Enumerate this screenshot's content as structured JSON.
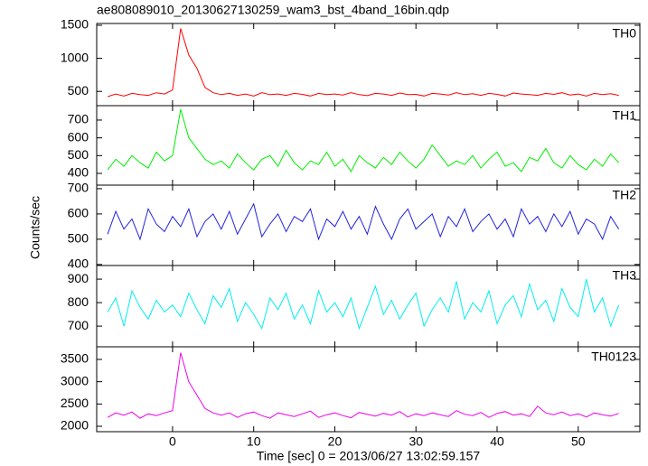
{
  "chart_data": [
    {
      "type": "line",
      "title": "ae808089010_20130627130259_wam3_bst_4band_16bin.qdp",
      "x": [
        -8,
        -7,
        -6,
        -5,
        -4,
        -3,
        -2,
        -1,
        0,
        1,
        2,
        3,
        4,
        5,
        6,
        7,
        8,
        9,
        10,
        11,
        12,
        13,
        14,
        15,
        16,
        17,
        18,
        19,
        20,
        21,
        22,
        23,
        24,
        25,
        26,
        27,
        28,
        29,
        30,
        31,
        32,
        33,
        34,
        35,
        36,
        37,
        38,
        39,
        40,
        41,
        42,
        43,
        44,
        45,
        46,
        47,
        48,
        49,
        50,
        51,
        52,
        53,
        54,
        55
      ],
      "series": [
        {
          "name": "TH0",
          "color": "#ff0000",
          "values": [
            420,
            460,
            430,
            470,
            450,
            440,
            480,
            460,
            520,
            1450,
            1050,
            850,
            560,
            480,
            450,
            470,
            440,
            460,
            430,
            480,
            450,
            460,
            440,
            470,
            455,
            430,
            470,
            450,
            460,
            445,
            480,
            450,
            435,
            470,
            460,
            440,
            475,
            450,
            455,
            430,
            470,
            460,
            445,
            480,
            450,
            465,
            440,
            470,
            455,
            430,
            475,
            460,
            450,
            440,
            470,
            455,
            480,
            445,
            460,
            430,
            470,
            450,
            465,
            440
          ]
        }
      ],
      "xlim": [
        -9.35,
        57.6
      ],
      "xticks": [
        0,
        10,
        20,
        30,
        40,
        50
      ],
      "ylim": [
        284,
        1527
      ],
      "yticks": [
        500,
        1000,
        1500
      ]
    },
    {
      "type": "line",
      "x": [
        -8,
        -7,
        -6,
        -5,
        -4,
        -3,
        -2,
        -1,
        0,
        1,
        2,
        3,
        4,
        5,
        6,
        7,
        8,
        9,
        10,
        11,
        12,
        13,
        14,
        15,
        16,
        17,
        18,
        19,
        20,
        21,
        22,
        23,
        24,
        25,
        26,
        27,
        28,
        29,
        30,
        31,
        32,
        33,
        34,
        35,
        36,
        37,
        38,
        39,
        40,
        41,
        42,
        43,
        44,
        45,
        46,
        47,
        48,
        49,
        50,
        51,
        52,
        53,
        54,
        55
      ],
      "series": [
        {
          "name": "TH1",
          "color": "#00ee00",
          "values": [
            420,
            480,
            440,
            500,
            460,
            430,
            520,
            470,
            500,
            760,
            600,
            540,
            480,
            450,
            470,
            430,
            510,
            460,
            420,
            480,
            500,
            440,
            530,
            460,
            420,
            470,
            450,
            520,
            440,
            480,
            410,
            500,
            460,
            430,
            490,
            450,
            520,
            470,
            430,
            480,
            560,
            500,
            440,
            470,
            450,
            500,
            430,
            480,
            520,
            440,
            460,
            410,
            490,
            470,
            540,
            460,
            430,
            500,
            450,
            420,
            480,
            440,
            510,
            460
          ]
        }
      ],
      "xlim": [
        -9.35,
        57.6
      ],
      "xticks": [
        0,
        10,
        20,
        30,
        40,
        50
      ],
      "ylim": [
        334,
        781
      ],
      "yticks": [
        400,
        500,
        600,
        700
      ]
    },
    {
      "type": "line",
      "ylabel": "Counts/sec",
      "x": [
        -8,
        -7,
        -6,
        -5,
        -4,
        -3,
        -2,
        -1,
        0,
        1,
        2,
        3,
        4,
        5,
        6,
        7,
        8,
        9,
        10,
        11,
        12,
        13,
        14,
        15,
        16,
        17,
        18,
        19,
        20,
        21,
        22,
        23,
        24,
        25,
        26,
        27,
        28,
        29,
        30,
        31,
        32,
        33,
        34,
        35,
        36,
        37,
        38,
        39,
        40,
        41,
        42,
        43,
        44,
        45,
        46,
        47,
        48,
        49,
        50,
        51,
        52,
        53,
        54,
        55
      ],
      "series": [
        {
          "name": "TH2",
          "color": "#2222dd",
          "values": [
            520,
            610,
            540,
            580,
            500,
            620,
            560,
            530,
            590,
            550,
            620,
            510,
            570,
            600,
            540,
            610,
            520,
            580,
            640,
            510,
            560,
            600,
            530,
            590,
            570,
            620,
            500,
            580,
            550,
            610,
            540,
            590,
            520,
            630,
            560,
            500,
            580,
            620,
            540,
            570,
            600,
            510,
            590,
            550,
            620,
            530,
            570,
            600,
            540,
            580,
            510,
            620,
            560,
            590,
            530,
            600,
            550,
            610,
            520,
            580,
            560,
            500,
            590,
            540
          ]
        }
      ],
      "xlim": [
        -9.35,
        57.6
      ],
      "xticks": [
        0,
        10,
        20,
        30,
        40,
        50
      ],
      "ylim": [
        396,
        714
      ],
      "yticks": [
        400,
        500,
        600,
        700
      ]
    },
    {
      "type": "line",
      "x": [
        -8,
        -7,
        -6,
        -5,
        -4,
        -3,
        -2,
        -1,
        0,
        1,
        2,
        3,
        4,
        5,
        6,
        7,
        8,
        9,
        10,
        11,
        12,
        13,
        14,
        15,
        16,
        17,
        18,
        19,
        20,
        21,
        22,
        23,
        24,
        25,
        26,
        27,
        28,
        29,
        30,
        31,
        32,
        33,
        34,
        35,
        36,
        37,
        38,
        39,
        40,
        41,
        42,
        43,
        44,
        45,
        46,
        47,
        48,
        49,
        50,
        51,
        52,
        53,
        54,
        55
      ],
      "series": [
        {
          "name": "TH3",
          "color": "#00eeee",
          "values": [
            760,
            820,
            700,
            850,
            780,
            730,
            810,
            760,
            790,
            740,
            840,
            770,
            710,
            830,
            780,
            860,
            720,
            800,
            750,
            690,
            820,
            770,
            840,
            730,
            790,
            710,
            850,
            760,
            800,
            740,
            820,
            690,
            780,
            870,
            750,
            810,
            730,
            790,
            840,
            700,
            770,
            820,
            760,
            890,
            730,
            800,
            760,
            850,
            710,
            790,
            830,
            740,
            880,
            770,
            810,
            720,
            860,
            780,
            740,
            900,
            760,
            820,
            700,
            790
          ]
        }
      ],
      "xlim": [
        -9.35,
        57.6
      ],
      "xticks": [
        0,
        10,
        20,
        30,
        40,
        50
      ],
      "ylim": [
        612,
        958
      ],
      "yticks": [
        700,
        800,
        900
      ]
    },
    {
      "type": "line",
      "xlabel": "Time [sec] 0 = 2013/06/27 13:02:59.157",
      "x": [
        -8,
        -7,
        -6,
        -5,
        -4,
        -3,
        -2,
        -1,
        0,
        1,
        2,
        3,
        4,
        5,
        6,
        7,
        8,
        9,
        10,
        11,
        12,
        13,
        14,
        15,
        16,
        17,
        18,
        19,
        20,
        21,
        22,
        23,
        24,
        25,
        26,
        27,
        28,
        29,
        30,
        31,
        32,
        33,
        34,
        35,
        36,
        37,
        38,
        39,
        40,
        41,
        42,
        43,
        44,
        45,
        46,
        47,
        48,
        49,
        50,
        51,
        52,
        53,
        54,
        55
      ],
      "series": [
        {
          "name": "TH0123",
          "color": "#ee00ee",
          "values": [
            2200,
            2300,
            2250,
            2320,
            2180,
            2280,
            2240,
            2300,
            2350,
            3650,
            3000,
            2700,
            2400,
            2300,
            2250,
            2300,
            2200,
            2280,
            2320,
            2240,
            2180,
            2300,
            2260,
            2220,
            2280,
            2340,
            2200,
            2260,
            2300,
            2240,
            2190,
            2310,
            2270,
            2230,
            2290,
            2250,
            2330,
            2210,
            2280,
            2240,
            2300,
            2260,
            2220,
            2350,
            2270,
            2240,
            2310,
            2200,
            2290,
            2330,
            2250,
            2280,
            2220,
            2450,
            2300,
            2260,
            2320,
            2240,
            2280,
            2210,
            2300,
            2260,
            2230,
            2290
          ]
        }
      ],
      "xlim": [
        -9.35,
        57.6
      ],
      "xticks": [
        0,
        10,
        20,
        30,
        40,
        50
      ],
      "ylim": [
        1879,
        3783
      ],
      "yticks": [
        2000,
        2500,
        3000,
        3500
      ]
    }
  ]
}
